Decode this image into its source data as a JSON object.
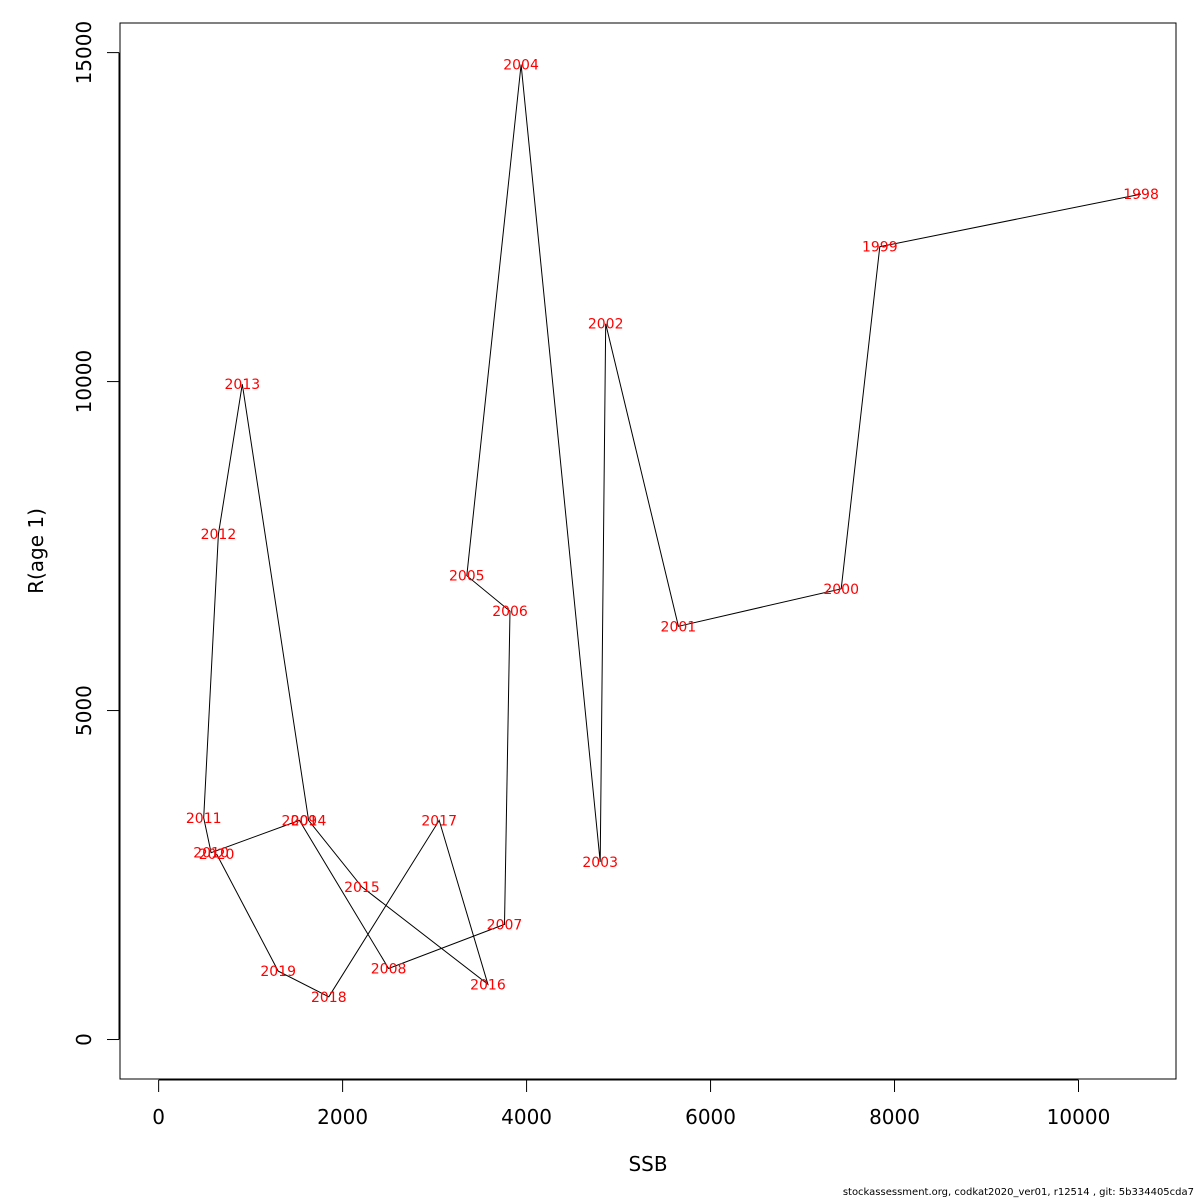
{
  "chart_data": {
    "type": "line",
    "xlabel": "SSB",
    "ylabel": "R(age 1)",
    "xlim": [
      -420,
      11060
    ],
    "ylim": [
      -600,
      15450
    ],
    "x_ticks": [
      0,
      2000,
      4000,
      6000,
      8000,
      10000
    ],
    "y_ticks": [
      0,
      5000,
      10000,
      15000
    ],
    "grid": false,
    "label_color": "#ff0000",
    "line_color": "#000000",
    "points": [
      {
        "year": "1998",
        "x": 10680,
        "y": 12850
      },
      {
        "year": "1999",
        "x": 7840,
        "y": 12050
      },
      {
        "year": "2000",
        "x": 7420,
        "y": 6850
      },
      {
        "year": "2001",
        "x": 5650,
        "y": 6280
      },
      {
        "year": "2002",
        "x": 4860,
        "y": 10880
      },
      {
        "year": "2003",
        "x": 4800,
        "y": 2700
      },
      {
        "year": "2004",
        "x": 3940,
        "y": 14820
      },
      {
        "year": "2005",
        "x": 3350,
        "y": 7050
      },
      {
        "year": "2006",
        "x": 3820,
        "y": 6510
      },
      {
        "year": "2007",
        "x": 3760,
        "y": 1750
      },
      {
        "year": "2008",
        "x": 2500,
        "y": 1080
      },
      {
        "year": "2009",
        "x": 1530,
        "y": 3330
      },
      {
        "year": "2010",
        "x": 570,
        "y": 2840
      },
      {
        "year": "2011",
        "x": 490,
        "y": 3370
      },
      {
        "year": "2012",
        "x": 650,
        "y": 7680
      },
      {
        "year": "2013",
        "x": 910,
        "y": 9960
      },
      {
        "year": "2014",
        "x": 1630,
        "y": 3330
      },
      {
        "year": "2015",
        "x": 2210,
        "y": 2320
      },
      {
        "year": "2016",
        "x": 3580,
        "y": 840
      },
      {
        "year": "2017",
        "x": 3050,
        "y": 3330
      },
      {
        "year": "2018",
        "x": 1850,
        "y": 650
      },
      {
        "year": "2019",
        "x": 1300,
        "y": 1040
      },
      {
        "year": "2020",
        "x": 630,
        "y": 2820
      }
    ]
  },
  "footer": "stockassessment.org, codkat2020_ver01, r12514 , git: 5b334405cda7"
}
